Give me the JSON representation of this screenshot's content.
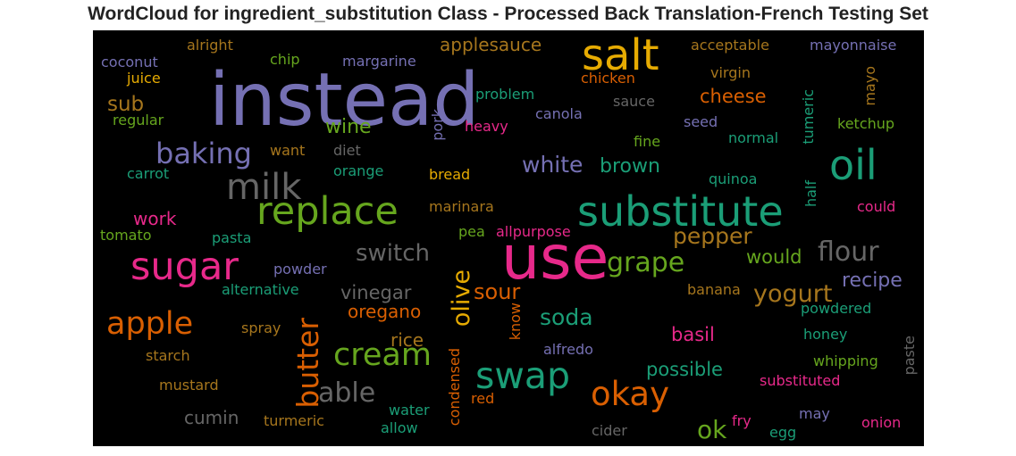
{
  "title": "WordCloud for ingredient_substitution Class - Processed Back Translation-French Testing Set",
  "colors": {
    "purple": "#7570b3",
    "green": "#1b9e77",
    "orange": "#d95f02",
    "pink": "#e7298a",
    "lime": "#66a61e",
    "gold": "#e6ab02",
    "brown": "#a6761d",
    "gray": "#666666"
  },
  "words": [
    "instead",
    "use",
    "salt",
    "substitute",
    "replace",
    "sugar",
    "oil",
    "milk",
    "swap",
    "okay",
    "cream",
    "apple",
    "butter",
    "baking",
    "grape",
    "flour",
    "able",
    "olive",
    "yogurt",
    "pepper",
    "switch",
    "soda",
    "white",
    "brown",
    "sour",
    "vinegar",
    "recipe",
    "wine",
    "cheese",
    "sub",
    "applesauce",
    "basil",
    "would",
    "possible",
    "oregano",
    "rice",
    "cumin",
    "work",
    "ok",
    "coconut",
    "alright",
    "chip",
    "margarine",
    "acceptable",
    "mayonnaise",
    "juice",
    "chicken",
    "virgin",
    "mayo",
    "problem",
    "sauce",
    "regular",
    "canola",
    "seed",
    "tumeric",
    "ketchup",
    "heavy",
    "pork",
    "want",
    "diet",
    "fine",
    "normal",
    "carrot",
    "orange",
    "bread",
    "quinoa",
    "half",
    "marinara",
    "could",
    "tomato",
    "pea",
    "allpurpose",
    "pasta",
    "powder",
    "alternative",
    "banana",
    "powdered",
    "know",
    "spray",
    "honey",
    "alfredo",
    "starch",
    "whipping",
    "paste",
    "condensed",
    "mustard",
    "substituted",
    "red",
    "water",
    "may",
    "turmeric",
    "fry",
    "onion",
    "allow",
    "cider",
    "egg"
  ]
}
